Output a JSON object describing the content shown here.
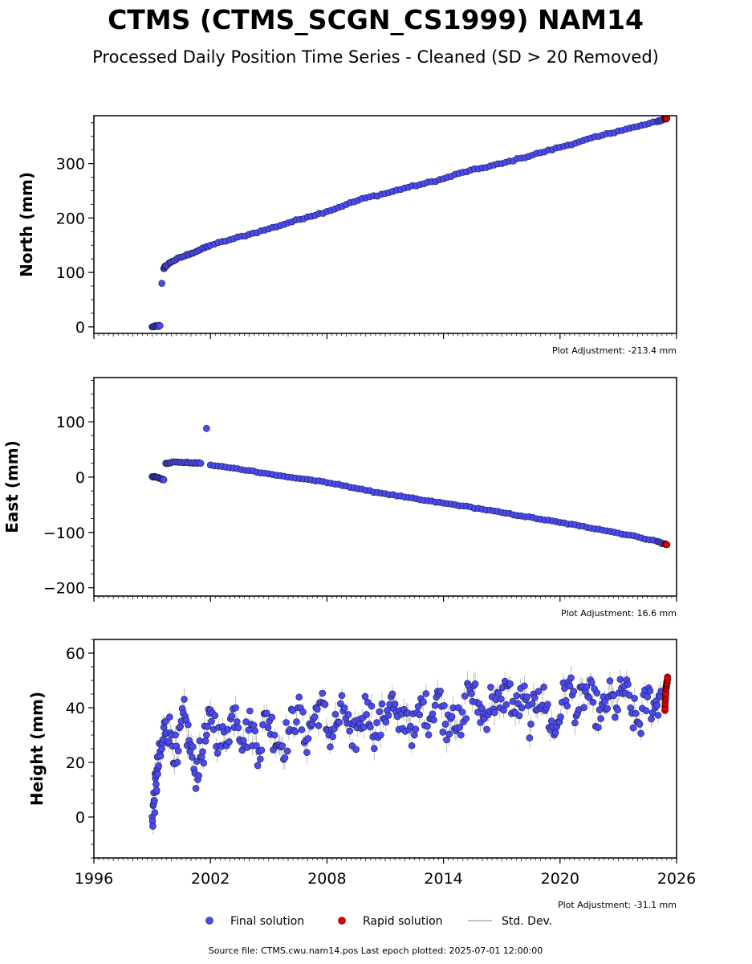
{
  "figure": {
    "title": "CTMS (CTMS_SCGN_CS1999) NAM14",
    "subtitle": "Processed Daily Position Time Series - Cleaned (SD > 20 Removed)",
    "footer": "Source file: CTMS.cwu.nam14.pos  Last epoch plotted: 2025-07-01 12:00:00"
  },
  "legend": {
    "final_label": "Final solution",
    "rapid_label": "Rapid solution",
    "std_label": "Std. Dev.",
    "placement": "bottom-center"
  },
  "colors": {
    "final": "#4a4af0",
    "final_edge": "#1a1a40",
    "rapid": "#e00000",
    "std": "#b0b0b0"
  },
  "chart_data": [
    {
      "type": "scatter",
      "ylabel": "North (mm)",
      "adjustment": "Plot Adjustment: -213.4 mm",
      "xlim": [
        1996,
        2026
      ],
      "ylim": [
        -12,
        388
      ],
      "yticks": [
        0,
        100,
        200,
        300
      ],
      "ytick_labels": [
        "0",
        "100",
        "200",
        "300"
      ],
      "grid": false,
      "series": [
        {
          "name": "Final solution",
          "x": [
            1999.0,
            1999.2,
            1999.4,
            1999.5,
            1999.6,
            1999.7,
            2000.0,
            2000.5,
            2001.0,
            2001.5,
            2002.0,
            2003.0,
            2004.0,
            2005.0,
            2006.0,
            2007.0,
            2008.0,
            2009.0,
            2010.0,
            2011.0,
            2012.0,
            2013.0,
            2014.0,
            2015.0,
            2016.0,
            2017.0,
            2018.0,
            2019.0,
            2020.0,
            2021.0,
            2022.0,
            2023.0,
            2024.0,
            2025.0,
            2025.3
          ],
          "y": [
            0,
            1,
            2,
            80,
            107,
            112,
            120,
            128,
            135,
            142,
            150,
            160,
            170,
            180,
            191,
            202,
            212,
            225,
            237,
            245,
            255,
            263,
            272,
            284,
            292,
            300,
            310,
            320,
            330,
            340,
            350,
            360,
            368,
            377,
            381
          ]
        },
        {
          "name": "Rapid solution",
          "x": [
            2025.4,
            2025.45,
            2025.5
          ],
          "y": [
            382,
            383,
            383
          ]
        }
      ]
    },
    {
      "type": "scatter",
      "ylabel": "East (mm)",
      "adjustment": "Plot Adjustment: 16.6 mm",
      "xlim": [
        1996,
        2026
      ],
      "ylim": [
        -215,
        180
      ],
      "yticks": [
        -200,
        -100,
        0,
        100
      ],
      "ytick_labels": [
        "−200",
        "−100",
        "0",
        "100"
      ],
      "grid": false,
      "series": [
        {
          "name": "Final solution",
          "x": [
            1999.0,
            1999.2,
            1999.4,
            1999.6,
            1999.7,
            2000.0,
            2000.5,
            2001.0,
            2001.5,
            2001.8,
            2002.0,
            2003.0,
            2004.0,
            2005.0,
            2006.0,
            2007.0,
            2008.0,
            2009.0,
            2010.0,
            2011.0,
            2012.0,
            2013.0,
            2014.0,
            2015.0,
            2016.0,
            2017.0,
            2018.0,
            2019.0,
            2020.0,
            2021.0,
            2022.0,
            2023.0,
            2024.0,
            2025.0,
            2025.3
          ],
          "y": [
            1,
            0,
            -2,
            -5,
            25,
            27,
            27,
            26,
            25,
            88,
            22,
            17,
            12,
            6,
            0,
            -4,
            -10,
            -16,
            -24,
            -30,
            -36,
            -42,
            -47,
            -52,
            -58,
            -64,
            -70,
            -76,
            -82,
            -88,
            -94,
            -101,
            -108,
            -116,
            -120
          ]
        },
        {
          "name": "Rapid solution",
          "x": [
            2025.4,
            2025.5
          ],
          "y": [
            -121,
            -122
          ]
        }
      ]
    },
    {
      "type": "scatter",
      "ylabel": "Height (mm)",
      "adjustment": "Plot Adjustment: -31.1 mm",
      "xlim": [
        1996,
        2026
      ],
      "ylim": [
        -15,
        65
      ],
      "yticks": [
        0,
        20,
        40,
        60
      ],
      "ytick_labels": [
        "0",
        "20",
        "40",
        "60"
      ],
      "xticks": [
        1996,
        2002,
        2008,
        2014,
        2020,
        2026
      ],
      "xtick_labels": [
        "1996",
        "2002",
        "2008",
        "2014",
        "2020",
        "2026"
      ],
      "grid": false,
      "series": [
        {
          "name": "Final solution",
          "x": [
            1999.0,
            1999.1,
            1999.2,
            1999.3,
            1999.5,
            1999.7,
            2000.0,
            2000.3,
            2000.6,
            2000.9,
            2001.2,
            2001.5,
            2001.8,
            2002.1,
            2002.5,
            2002.9,
            2003.3,
            2003.7,
            2004.1,
            2004.5,
            2004.9,
            2005.3,
            2005.7,
            2006.1,
            2006.5,
            2006.9,
            2007.3,
            2007.7,
            2008.1,
            2008.5,
            2008.9,
            2009.3,
            2009.7,
            2010.1,
            2010.5,
            2010.9,
            2011.3,
            2011.7,
            2012.1,
            2012.5,
            2012.9,
            2013.3,
            2013.7,
            2014.1,
            2014.5,
            2014.9,
            2015.3,
            2015.7,
            2016.1,
            2016.5,
            2016.9,
            2017.3,
            2017.7,
            2018.1,
            2018.5,
            2018.9,
            2019.3,
            2019.7,
            2020.1,
            2020.5,
            2020.9,
            2021.3,
            2021.7,
            2022.1,
            2022.5,
            2022.9,
            2023.3,
            2023.7,
            2024.1,
            2024.5,
            2024.9,
            2025.2
          ],
          "y": [
            0,
            6,
            12,
            18,
            25,
            35,
            30,
            20,
            38,
            28,
            16,
            22,
            30,
            38,
            26,
            32,
            40,
            28,
            34,
            24,
            38,
            30,
            26,
            32,
            40,
            28,
            36,
            42,
            30,
            34,
            40,
            26,
            34,
            42,
            30,
            36,
            44,
            32,
            38,
            30,
            42,
            36,
            46,
            34,
            40,
            30,
            48,
            42,
            36,
            44,
            40,
            48,
            38,
            44,
            34,
            46,
            40,
            30,
            42,
            48,
            38,
            46,
            42,
            36,
            44,
            40,
            48,
            38,
            34,
            44,
            40,
            46
          ]
        },
        {
          "name": "Rapid solution",
          "x": [
            2025.4,
            2025.42,
            2025.44,
            2025.46,
            2025.48,
            2025.5,
            2025.52,
            2025.54
          ],
          "y": [
            39,
            43,
            45,
            47,
            48,
            49,
            50,
            51
          ]
        }
      ]
    }
  ]
}
